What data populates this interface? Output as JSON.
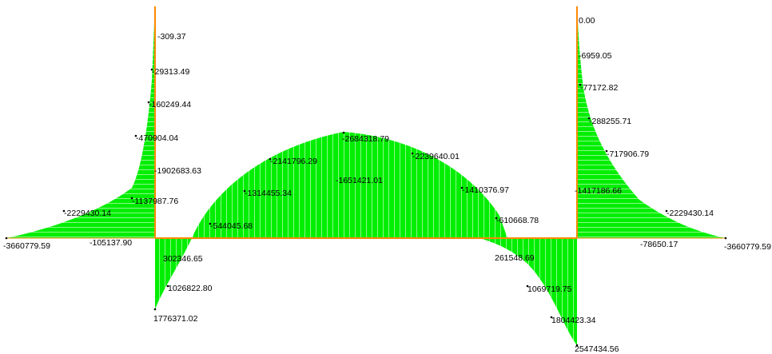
{
  "colors": {
    "fill": "#00ee00",
    "hatch": "#ffffff",
    "axis": "#ff8800",
    "axis_nodes": "#e0b000",
    "text": "#000000",
    "background": "#ffffff"
  },
  "labels": {
    "l01": "0.00",
    "l02": "-309.37",
    "l03": "-29313.49",
    "l04": "-160249.44",
    "l05": "-470904.04",
    "l06": "-1902683.63",
    "l07": "-1137987.76",
    "l08": "-2229430.14",
    "l09": "-105137.90",
    "l10": "-3660779.59",
    "l11": "302346.65",
    "l12": "1026822.80",
    "l13": "1776371.02",
    "l14": "-544045.68",
    "l15": "-1314455.34",
    "l16": "-2141796.29",
    "l17": "-1651421.01",
    "l18": "-2684318.79",
    "l19": "-2239640.01",
    "l20": "-1410376.97",
    "l21": "-610668.78",
    "l22": "261548.69",
    "l23": "1069719.75",
    "l24": "1804423.34",
    "l25": "2547434.56",
    "l26": "-6959.05",
    "l27": "-77172.82",
    "l28": "-288255.71",
    "l29": "-717906.79",
    "l30": "-1417186.66",
    "l31": "-2229430.14",
    "l32": "-78650.17",
    "l33": "-3660779.59"
  }
}
